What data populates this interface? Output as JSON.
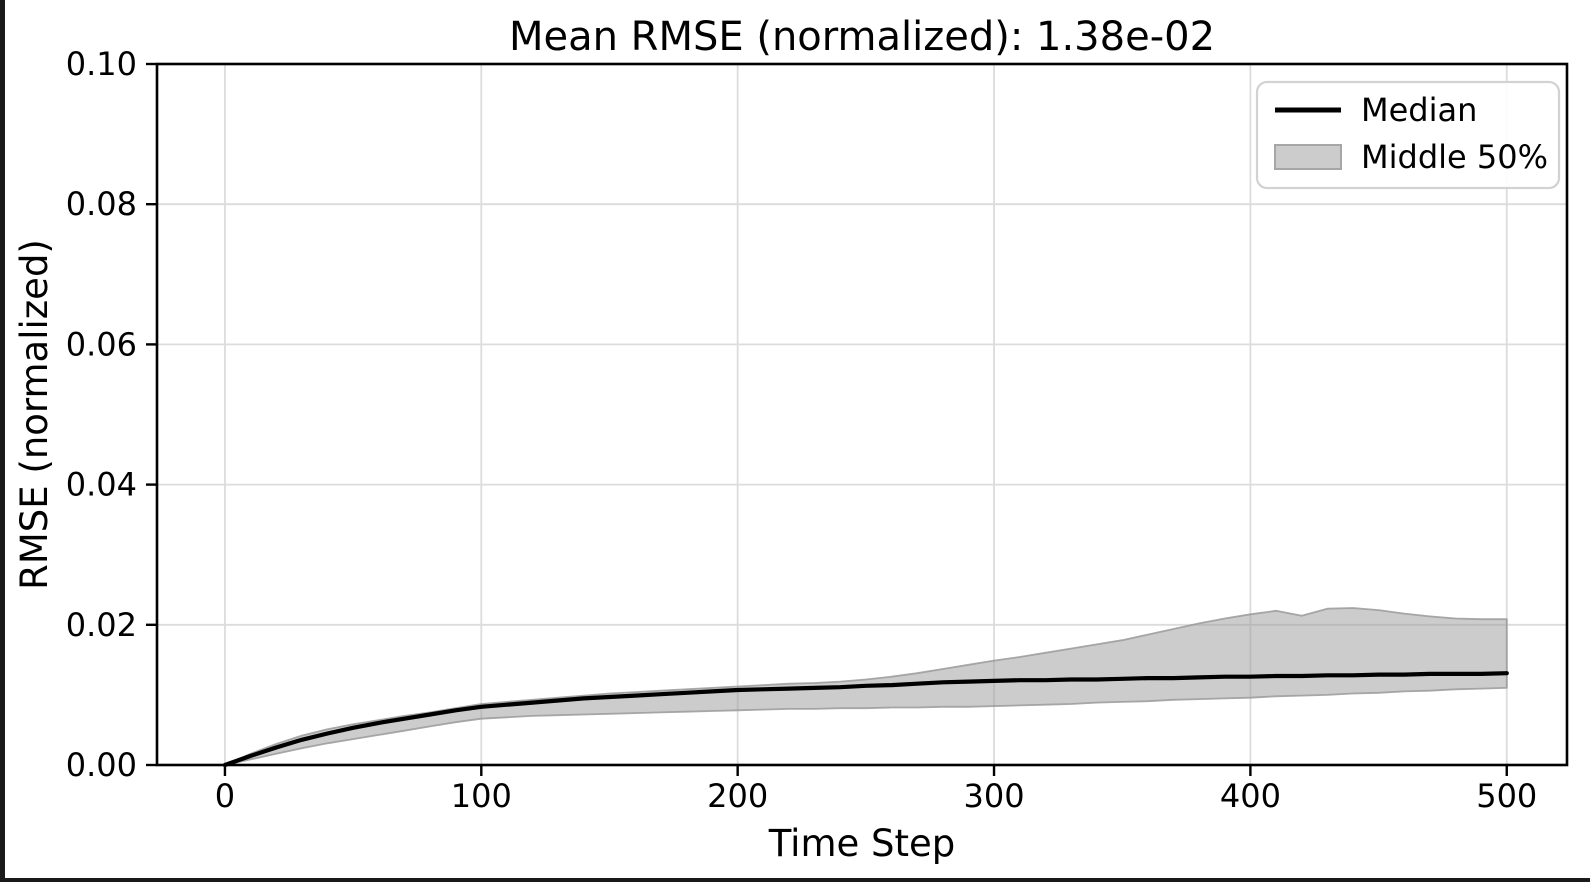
{
  "figure": {
    "background": "#ffffff",
    "frame_border_color": "#1a1a1a"
  },
  "chart_data": {
    "type": "line",
    "title": "Mean RMSE (normalized): 1.38e-02",
    "xlabel": "Time Step",
    "ylabel": "RMSE (normalized)",
    "xlim": [
      -26.5,
      523.5
    ],
    "ylim": [
      0,
      0.1
    ],
    "xticks": [
      0,
      100,
      200,
      300,
      400,
      500
    ],
    "yticks": [
      0,
      0.02,
      0.04,
      0.06,
      0.08,
      0.1
    ],
    "xtick_labels": [
      "0",
      "100",
      "200",
      "300",
      "400",
      "500"
    ],
    "ytick_labels": [
      "0.00",
      "0.02",
      "0.04",
      "0.06",
      "0.08",
      "0.10"
    ],
    "grid": true,
    "grid_color": "#dcdcdc",
    "x": [
      0,
      10,
      20,
      30,
      40,
      50,
      60,
      70,
      80,
      90,
      100,
      110,
      120,
      130,
      140,
      150,
      160,
      170,
      180,
      190,
      200,
      210,
      220,
      230,
      240,
      250,
      260,
      270,
      280,
      290,
      300,
      310,
      320,
      330,
      340,
      350,
      360,
      370,
      380,
      390,
      400,
      410,
      420,
      430,
      440,
      450,
      460,
      470,
      480,
      490,
      500
    ],
    "series": [
      {
        "name": "Median",
        "type": "line",
        "color": "#000000",
        "values": [
          0.0,
          0.0013,
          0.0025,
          0.0036,
          0.0045,
          0.0053,
          0.006,
          0.0066,
          0.0072,
          0.0078,
          0.0083,
          0.0086,
          0.0089,
          0.0092,
          0.0095,
          0.0097,
          0.0099,
          0.0101,
          0.0103,
          0.0105,
          0.0107,
          0.0108,
          0.0109,
          0.011,
          0.0111,
          0.0113,
          0.0114,
          0.0116,
          0.0118,
          0.0119,
          0.012,
          0.0121,
          0.0121,
          0.0122,
          0.0122,
          0.0123,
          0.0124,
          0.0124,
          0.0125,
          0.0126,
          0.0126,
          0.0127,
          0.0127,
          0.0128,
          0.0128,
          0.0129,
          0.0129,
          0.013,
          0.013,
          0.013,
          0.0131
        ]
      },
      {
        "name": "Middle 50% upper (q75)",
        "type": "band-upper",
        "values": [
          0.0,
          0.0016,
          0.003,
          0.0042,
          0.0051,
          0.0058,
          0.0064,
          0.007,
          0.0075,
          0.0081,
          0.0087,
          0.009,
          0.0093,
          0.0096,
          0.0099,
          0.0102,
          0.0104,
          0.0106,
          0.0108,
          0.011,
          0.0112,
          0.0114,
          0.0116,
          0.0117,
          0.0119,
          0.0122,
          0.0126,
          0.0131,
          0.0137,
          0.0143,
          0.0149,
          0.0154,
          0.016,
          0.0166,
          0.0172,
          0.0178,
          0.0186,
          0.0194,
          0.0202,
          0.0209,
          0.0215,
          0.022,
          0.0213,
          0.0223,
          0.0224,
          0.0221,
          0.0216,
          0.0212,
          0.0209,
          0.0208,
          0.0208
        ]
      },
      {
        "name": "Middle 50% lower (q25)",
        "type": "band-lower",
        "values": [
          0.0,
          0.0008,
          0.0016,
          0.0024,
          0.0031,
          0.0037,
          0.0043,
          0.0049,
          0.0055,
          0.0061,
          0.0066,
          0.0068,
          0.007,
          0.0071,
          0.0072,
          0.0073,
          0.0074,
          0.0075,
          0.0076,
          0.0077,
          0.0078,
          0.0079,
          0.008,
          0.008,
          0.0081,
          0.0081,
          0.0082,
          0.0082,
          0.0083,
          0.0083,
          0.0084,
          0.0085,
          0.0086,
          0.0087,
          0.0089,
          0.009,
          0.0091,
          0.0093,
          0.0094,
          0.0095,
          0.0096,
          0.0098,
          0.0099,
          0.01,
          0.0102,
          0.0103,
          0.0105,
          0.0106,
          0.0108,
          0.0109,
          0.011
        ]
      }
    ],
    "band_style": {
      "fill": "#999999",
      "fill_opacity": 0.5,
      "edge": "#9a9a9a",
      "edge_opacity": 0.85
    },
    "median_style": {
      "color": "#000000",
      "width": 4.2
    },
    "legend": {
      "position": "upper right",
      "entries": [
        {
          "label": "Median",
          "type": "line",
          "color": "#000000"
        },
        {
          "label": "Middle 50%",
          "type": "patch",
          "fill": "#cccccc",
          "edge": "#a6a6a6"
        }
      ]
    }
  }
}
